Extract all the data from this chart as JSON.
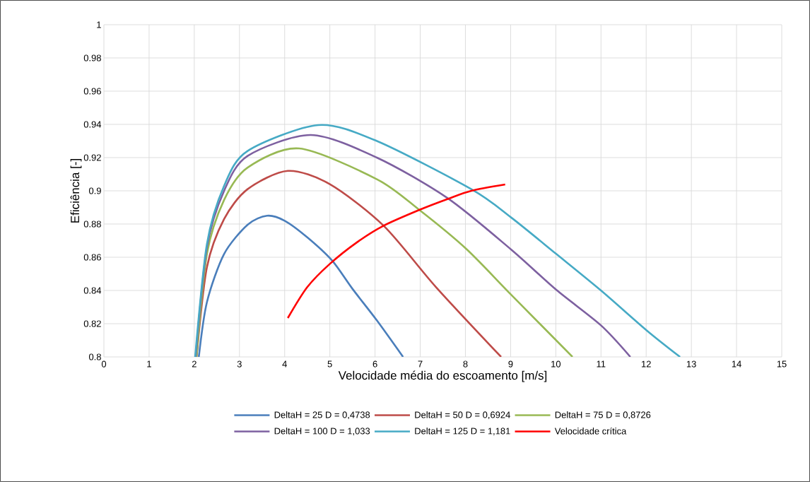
{
  "chart_data": {
    "type": "line",
    "xlabel": "Velocidade média do escoamento [m/s]",
    "ylabel": "Eficiência [-]",
    "xlim": [
      0,
      15
    ],
    "ylim": [
      0.8,
      1
    ],
    "xticks": [
      0,
      1,
      2,
      3,
      4,
      5,
      6,
      7,
      8,
      9,
      10,
      11,
      12,
      13,
      14,
      15
    ],
    "yticks": [
      0.8,
      0.82,
      0.84,
      0.86,
      0.88,
      0.9,
      0.92,
      0.94,
      0.96,
      0.98,
      1
    ],
    "grid": true,
    "legend": "bottom",
    "series": [
      {
        "name": "DeltaH = 25 D = 0,4738",
        "color": "#4a7ebb",
        "x": [
          2.1,
          2.28,
          2.66,
          3.18,
          3.61,
          4.0,
          4.5,
          5.05,
          5.5,
          6.04,
          6.62
        ],
        "values": [
          0.8,
          0.833,
          0.862,
          0.8796,
          0.885,
          0.882,
          0.872,
          0.858,
          0.841,
          0.822,
          0.8
        ]
      },
      {
        "name": "DeltaH = 50 D = 0,6924",
        "color": "#be4b48",
        "x": [
          2.05,
          2.28,
          2.66,
          3.18,
          4.07,
          5.0,
          6.19,
          7.35,
          8.79
        ],
        "values": [
          0.8,
          0.854,
          0.883,
          0.901,
          0.912,
          0.904,
          0.879,
          0.842,
          0.8
        ]
      },
      {
        "name": "DeltaH = 75 D = 0,8726",
        "color": "#98b954",
        "x": [
          2.05,
          2.28,
          2.66,
          3.18,
          4.32,
          6.04,
          6.98,
          8.02,
          9.01,
          10.37
        ],
        "values": [
          0.8,
          0.862,
          0.8945,
          0.914,
          0.9255,
          0.907,
          0.8885,
          0.865,
          0.8375,
          0.8
        ]
      },
      {
        "name": "DeltaH = 100 D = 1,033",
        "color": "#7d60a0",
        "x": [
          2.03,
          2.28,
          2.66,
          3.18,
          4.58,
          6.04,
          7.6,
          9.01,
          10.01,
          11.0,
          11.65
        ],
        "values": [
          0.8,
          0.866,
          0.9,
          0.921,
          0.9336,
          0.92,
          0.8957,
          0.8647,
          0.8404,
          0.819,
          0.8
        ]
      },
      {
        "name": "DeltaH = 125 D = 1,181",
        "color": "#46aac5",
        "x": [
          2.02,
          2.28,
          2.66,
          3.18,
          4.74,
          6.04,
          8.13,
          9.01,
          10.01,
          11.0,
          12.01,
          12.75
        ],
        "values": [
          0.8,
          0.868,
          0.903,
          0.924,
          0.9396,
          0.93,
          0.901,
          0.884,
          0.862,
          0.84,
          0.816,
          0.8
        ]
      },
      {
        "name": "Velocidade crítica",
        "color": "#ff0000",
        "x": [
          4.07,
          4.5,
          5.0,
          5.6,
          6.19,
          6.98,
          7.6,
          8.13,
          8.88
        ],
        "values": [
          0.8234,
          0.842,
          0.856,
          0.869,
          0.879,
          0.8885,
          0.895,
          0.9,
          0.9038
        ]
      }
    ]
  }
}
